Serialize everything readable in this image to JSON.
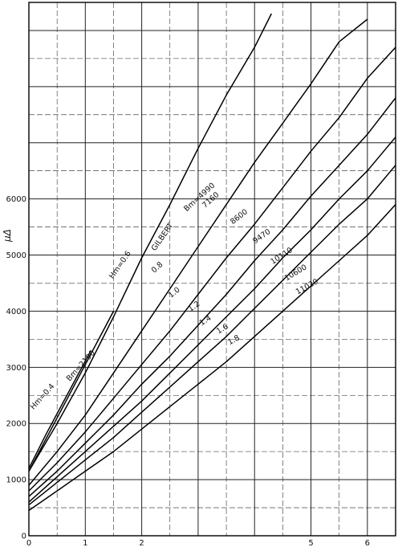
{
  "chart_data": {
    "type": "line",
    "title": "",
    "xlabel": "",
    "ylabel": "μΔ",
    "xlim": [
      0,
      6.5
    ],
    "ylim": [
      0,
      9500
    ],
    "grid": true,
    "legend": "none",
    "x_ticks": [
      {
        "value": 0,
        "label": "0"
      },
      {
        "value": 1,
        "label": "1"
      },
      {
        "value": 2,
        "label": "2"
      },
      {
        "value": 5,
        "label": "5"
      },
      {
        "value": 6,
        "label": "6"
      }
    ],
    "y_ticks": [
      {
        "value": 0,
        "label": "0"
      },
      {
        "value": 1000,
        "label": "1000"
      },
      {
        "value": 2000,
        "label": "2000"
      },
      {
        "value": 3000,
        "label": "3000"
      },
      {
        "value": 4000,
        "label": "4000"
      },
      {
        "value": 5000,
        "label": "5000"
      },
      {
        "value": 6000,
        "label": "6000"
      }
    ],
    "series": [
      {
        "name": "Hm=0.4",
        "points": [
          [
            0,
            1200
          ],
          [
            0.3,
            1800
          ],
          [
            1.1,
            3300
          ]
        ]
      },
      {
        "name": "Hm=0.6",
        "points": [
          [
            0,
            1150
          ],
          [
            0.5,
            2100
          ],
          [
            1.0,
            3050
          ],
          [
            1.5,
            4000
          ]
        ]
      },
      {
        "name": "Bm=4990",
        "points": [
          [
            0,
            1150
          ],
          [
            0.5,
            2000
          ],
          [
            1.0,
            2900
          ],
          [
            1.5,
            3900
          ],
          [
            2.0,
            4950
          ],
          [
            2.5,
            5900
          ],
          [
            3.0,
            6900
          ],
          [
            3.5,
            7850
          ],
          [
            4.0,
            8700
          ],
          [
            4.3,
            9300
          ]
        ]
      },
      {
        "name": "0.8",
        "points": [
          [
            0,
            900
          ],
          [
            0.5,
            1500
          ],
          [
            1.0,
            2150
          ],
          [
            1.5,
            2900
          ],
          [
            2.0,
            3650
          ],
          [
            2.5,
            4400
          ],
          [
            3.0,
            5150
          ],
          [
            3.5,
            5900
          ],
          [
            4.0,
            6650
          ],
          [
            4.5,
            7350
          ],
          [
            5.0,
            8050
          ],
          [
            5.5,
            8800
          ],
          [
            6.0,
            9200
          ]
        ]
      },
      {
        "name": "1.0",
        "points": [
          [
            0,
            800
          ],
          [
            0.5,
            1300
          ],
          [
            1.0,
            1850
          ],
          [
            1.5,
            2450
          ],
          [
            2.0,
            3050
          ],
          [
            2.5,
            3650
          ],
          [
            3.0,
            4300
          ],
          [
            3.5,
            4950
          ],
          [
            4.0,
            5550
          ],
          [
            4.5,
            6200
          ],
          [
            5.0,
            6850
          ],
          [
            5.5,
            7450
          ],
          [
            6.0,
            8150
          ],
          [
            6.5,
            8700
          ]
        ]
      },
      {
        "name": "1.2",
        "points": [
          [
            0,
            700
          ],
          [
            0.5,
            1150
          ],
          [
            1.0,
            1650
          ],
          [
            1.5,
            2150
          ],
          [
            2.0,
            2700
          ],
          [
            2.5,
            3200
          ],
          [
            3.0,
            3750
          ],
          [
            3.5,
            4300
          ],
          [
            4.0,
            4900
          ],
          [
            4.5,
            5450
          ],
          [
            5.0,
            6050
          ],
          [
            5.5,
            6600
          ],
          [
            6.0,
            7150
          ],
          [
            6.5,
            7800
          ]
        ]
      },
      {
        "name": "1.4",
        "points": [
          [
            0,
            600
          ],
          [
            0.5,
            1050
          ],
          [
            1.0,
            1500
          ],
          [
            1.5,
            1950
          ],
          [
            2.0,
            2400
          ],
          [
            2.5,
            2900
          ],
          [
            3.0,
            3400
          ],
          [
            3.5,
            3900
          ],
          [
            4.0,
            4400
          ],
          [
            4.5,
            4950
          ],
          [
            5.0,
            5450
          ],
          [
            5.5,
            6000
          ],
          [
            6.0,
            6500
          ],
          [
            6.5,
            7100
          ]
        ]
      },
      {
        "name": "1.6",
        "points": [
          [
            0,
            550
          ],
          [
            0.5,
            950
          ],
          [
            1.0,
            1350
          ],
          [
            1.5,
            1750
          ],
          [
            2.0,
            2200
          ],
          [
            2.5,
            2650
          ],
          [
            3.0,
            3100
          ],
          [
            3.5,
            3550
          ],
          [
            4.0,
            4050
          ],
          [
            4.5,
            4550
          ],
          [
            5.0,
            5050
          ],
          [
            5.5,
            5550
          ],
          [
            6.0,
            6000
          ],
          [
            6.5,
            6600
          ]
        ]
      },
      {
        "name": "1.8",
        "points": [
          [
            0,
            450
          ],
          [
            0.5,
            800
          ],
          [
            1.0,
            1150
          ],
          [
            1.5,
            1500
          ],
          [
            2.0,
            1900
          ],
          [
            2.5,
            2300
          ],
          [
            3.0,
            2700
          ],
          [
            3.5,
            3100
          ],
          [
            4.0,
            3550
          ],
          [
            4.5,
            4000
          ],
          [
            5.0,
            4450
          ],
          [
            5.5,
            4900
          ],
          [
            6.0,
            5350
          ],
          [
            6.5,
            5900
          ]
        ]
      }
    ],
    "annotations": [
      {
        "text": "Hm=0.4",
        "x": 0.27,
        "y": 2450,
        "angle": -48
      },
      {
        "text": "Bm=2190",
        "x": 0.95,
        "y": 3000,
        "angle": -48
      },
      {
        "text": "Hm=0.6",
        "x": 1.65,
        "y": 4800,
        "angle": -55
      },
      {
        "text": "GILBERT",
        "x": 2.4,
        "y": 5300,
        "angle": -55
      },
      {
        "text": "Bm=4990",
        "x": 3.05,
        "y": 6000,
        "angle": -42
      },
      {
        "text": "0.8",
        "x": 2.3,
        "y": 4750,
        "angle": -42
      },
      {
        "text": "7160",
        "x": 3.25,
        "y": 5950,
        "angle": -42
      },
      {
        "text": "1.0",
        "x": 2.6,
        "y": 4300,
        "angle": -38
      },
      {
        "text": "8600",
        "x": 3.75,
        "y": 5650,
        "angle": -38
      },
      {
        "text": "1.2",
        "x": 2.95,
        "y": 4050,
        "angle": -35
      },
      {
        "text": "9470",
        "x": 4.15,
        "y": 5300,
        "angle": -35
      },
      {
        "text": "1.4",
        "x": 3.15,
        "y": 3800,
        "angle": -33
      },
      {
        "text": "10110",
        "x": 4.5,
        "y": 4950,
        "angle": -33
      },
      {
        "text": "1.6",
        "x": 3.45,
        "y": 3650,
        "angle": -31
      },
      {
        "text": "10600",
        "x": 4.75,
        "y": 4650,
        "angle": -31
      },
      {
        "text": "1.8",
        "x": 3.65,
        "y": 3450,
        "angle": -29
      },
      {
        "text": "11020",
        "x": 4.95,
        "y": 4400,
        "angle": -29
      }
    ]
  }
}
